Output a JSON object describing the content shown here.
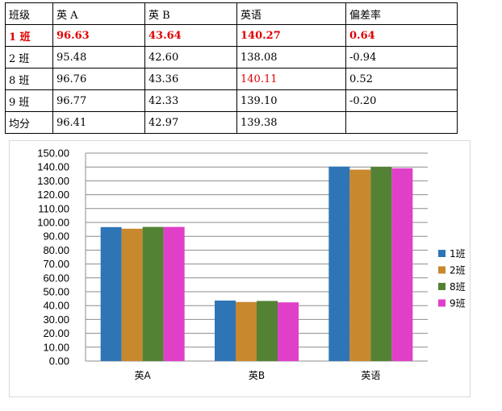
{
  "table": {
    "header": [
      "班级",
      "英 A",
      "英 B",
      "英语",
      "偏差率"
    ],
    "rows": [
      {
        "cells": [
          "1 班",
          "96.63",
          "43.64",
          "140.27",
          "0.64"
        ],
        "style": "bold-red",
        "red_cols": []
      },
      {
        "cells": [
          "2 班",
          "95.48",
          "42.60",
          "138.08",
          "-0.94"
        ],
        "style": "normal",
        "red_cols": []
      },
      {
        "cells": [
          "8 班",
          "96.76",
          "43.36",
          "140.11",
          "0.52"
        ],
        "style": "normal",
        "red_cols": [
          3
        ]
      },
      {
        "cells": [
          "9 班",
          "96.77",
          "42.33",
          "139.10",
          "-0.20"
        ],
        "style": "normal",
        "red_cols": []
      },
      {
        "cells": [
          "均分",
          "96.41",
          "42.97",
          "139.38",
          ""
        ],
        "style": "normal",
        "red_cols": []
      }
    ]
  },
  "chart_data": {
    "type": "bar",
    "categories": [
      "英A",
      "英B",
      "英语"
    ],
    "series": [
      {
        "name": "1班",
        "color": "#2e75b6",
        "values": [
          96.63,
          43.64,
          140.27
        ]
      },
      {
        "name": "2班",
        "color": "#c8882d",
        "values": [
          95.48,
          42.6,
          138.08
        ]
      },
      {
        "name": "8班",
        "color": "#548235",
        "values": [
          96.76,
          43.36,
          140.11
        ]
      },
      {
        "name": "9班",
        "color": "#e040c8",
        "values": [
          96.77,
          42.33,
          139.1
        ]
      }
    ],
    "ylim": [
      0,
      150
    ],
    "yticks": [
      "0.00",
      "10.00",
      "20.00",
      "30.00",
      "40.00",
      "50.00",
      "60.00",
      "70.00",
      "80.00",
      "90.00",
      "100.00",
      "110.00",
      "120.00",
      "130.00",
      "140.00",
      "150.00"
    ],
    "grid": true,
    "legend": "right"
  }
}
